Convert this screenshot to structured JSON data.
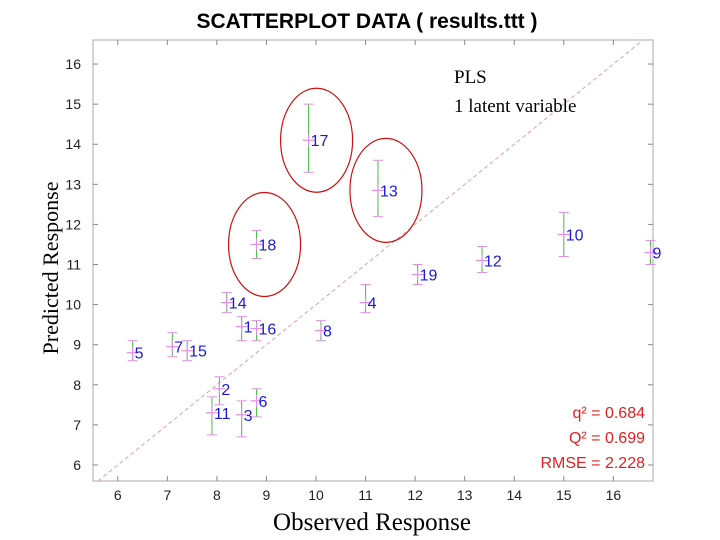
{
  "chart_data": {
    "type": "scatter",
    "title": "SCATTERPLOT DATA ( results.ttt )",
    "xlabel": "Observed Response",
    "ylabel": "Predicted Response",
    "xlim": [
      5.5,
      16.8
    ],
    "ylim": [
      5.6,
      16.6
    ],
    "xticks": [
      6,
      7,
      8,
      9,
      10,
      11,
      12,
      13,
      14,
      15,
      16
    ],
    "yticks": [
      6,
      7,
      8,
      9,
      10,
      11,
      12,
      13,
      14,
      15,
      16
    ],
    "grid": false,
    "reference_line": "y = x (dashed)",
    "points": [
      {
        "id": "1",
        "x": 8.5,
        "y": 9.45,
        "y_err": [
          9.1,
          9.7
        ]
      },
      {
        "id": "2",
        "x": 8.05,
        "y": 7.9,
        "y_err": [
          7.5,
          8.2
        ]
      },
      {
        "id": "3",
        "x": 8.5,
        "y": 7.25,
        "y_err": [
          6.7,
          7.6
        ]
      },
      {
        "id": "4",
        "x": 11.0,
        "y": 10.05,
        "y_err": [
          9.8,
          10.5
        ]
      },
      {
        "id": "5",
        "x": 6.3,
        "y": 8.8,
        "y_err": [
          8.6,
          9.1
        ]
      },
      {
        "id": "6",
        "x": 8.8,
        "y": 7.6,
        "y_err": [
          7.2,
          7.9
        ]
      },
      {
        "id": "7",
        "x": 7.1,
        "y": 8.95,
        "y_err": [
          8.7,
          9.3
        ]
      },
      {
        "id": "8",
        "x": 10.1,
        "y": 9.35,
        "y_err": [
          9.1,
          9.6
        ]
      },
      {
        "id": "9",
        "x": 16.75,
        "y": 11.3,
        "y_err": [
          11.0,
          11.6
        ]
      },
      {
        "id": "10",
        "x": 15.0,
        "y": 11.75,
        "y_err": [
          11.2,
          12.3
        ]
      },
      {
        "id": "11",
        "x": 7.9,
        "y": 7.3,
        "y_err": [
          6.75,
          7.7
        ]
      },
      {
        "id": "12",
        "x": 13.35,
        "y": 11.1,
        "y_err": [
          10.8,
          11.45
        ]
      },
      {
        "id": "13",
        "x": 11.25,
        "y": 12.85,
        "y_err": [
          12.2,
          13.6
        ]
      },
      {
        "id": "14",
        "x": 8.2,
        "y": 10.05,
        "y_err": [
          9.8,
          10.3
        ]
      },
      {
        "id": "15",
        "x": 7.4,
        "y": 8.85,
        "y_err": [
          8.6,
          9.1
        ]
      },
      {
        "id": "16",
        "x": 8.8,
        "y": 9.4,
        "y_err": [
          9.1,
          9.6
        ]
      },
      {
        "id": "17",
        "x": 9.85,
        "y": 14.1,
        "y_err": [
          13.3,
          15.0
        ]
      },
      {
        "id": "18",
        "x": 8.8,
        "y": 11.5,
        "y_err": [
          11.15,
          11.85
        ]
      },
      {
        "id": "19",
        "x": 12.05,
        "y": 10.75,
        "y_err": [
          10.5,
          11.0
        ]
      }
    ],
    "highlighted": [
      "17",
      "13",
      "18"
    ],
    "annotations": [
      "PLS",
      "1 latent variable"
    ],
    "stats": [
      "q² = 0.684",
      "Q² = 0.699",
      "RMSE = 2.228"
    ],
    "colors": {
      "marker": "#e090e8",
      "label": "#1a1ad8",
      "errorbar": "#40c040",
      "highlight": "#cc1010",
      "stats": "#e02020",
      "refline": "#e4a0a0"
    }
  }
}
